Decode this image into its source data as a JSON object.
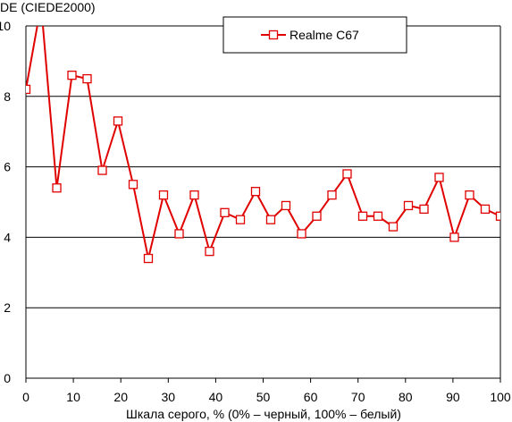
{
  "chart_data": {
    "type": "line",
    "title": "",
    "ylabel": "DE (CIEDE2000)",
    "xlabel": "Шкала серого, % (0% – черный, 100% – белый)",
    "xlim": [
      0,
      100
    ],
    "ylim": [
      0,
      10
    ],
    "xticks": [
      0,
      10,
      20,
      30,
      40,
      50,
      60,
      70,
      80,
      90,
      100
    ],
    "yticks": [
      0,
      2,
      4,
      6,
      8,
      10
    ],
    "grid": "horizontal",
    "legend_position": "top-center",
    "series": [
      {
        "name": "Realme C67",
        "color": "#e00000",
        "marker": "open-square",
        "x": [
          0,
          3.2,
          6.5,
          9.7,
          12.9,
          16.1,
          19.4,
          22.6,
          25.8,
          29.0,
          32.3,
          35.5,
          38.7,
          41.9,
          45.2,
          48.4,
          51.6,
          54.8,
          58.1,
          61.3,
          64.5,
          67.7,
          71.0,
          74.2,
          77.4,
          80.6,
          83.9,
          87.1,
          90.3,
          93.5,
          96.8,
          100
        ],
        "y": [
          8.2,
          10.6,
          5.4,
          8.6,
          8.5,
          5.9,
          7.3,
          5.5,
          3.4,
          5.2,
          4.1,
          5.2,
          3.6,
          4.7,
          4.5,
          5.3,
          4.5,
          4.9,
          4.1,
          4.6,
          5.2,
          5.8,
          4.6,
          4.6,
          4.3,
          4.9,
          4.8,
          5.7,
          4.0,
          5.2,
          4.8,
          4.6
        ]
      }
    ]
  }
}
